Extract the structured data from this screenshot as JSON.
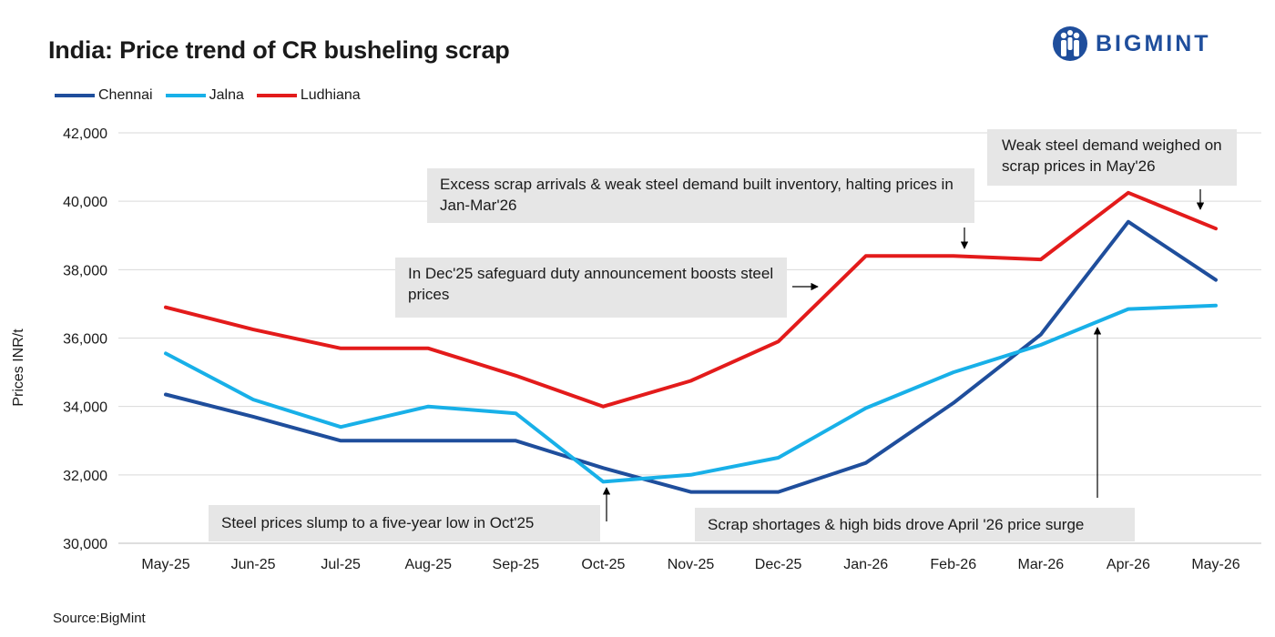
{
  "chart_data": {
    "type": "line",
    "title": "India: Price trend of CR busheling scrap",
    "ylabel": "Prices INR/t",
    "xlabel": "",
    "ylim": [
      30000,
      42000
    ],
    "yticks": [
      30000,
      32000,
      34000,
      36000,
      38000,
      40000,
      42000
    ],
    "ytick_labels": [
      "30,000",
      "32,000",
      "34,000",
      "36,000",
      "38,000",
      "40,000",
      "42,000"
    ],
    "grid": true,
    "legend_position": "top-left",
    "categories": [
      "May-25",
      "Jun-25",
      "Jul-25",
      "Aug-25",
      "Sep-25",
      "Oct-25",
      "Nov-25",
      "Dec-25",
      "Jan-26",
      "Feb-26",
      "Mar-26",
      "Apr-26",
      "May-26"
    ],
    "series": [
      {
        "name": "Chennai",
        "color": "#1f4e9c",
        "values": [
          34350,
          33700,
          33000,
          33000,
          33000,
          32200,
          31500,
          31500,
          32350,
          34100,
          36100,
          39400,
          37700
        ]
      },
      {
        "name": "Jalna",
        "color": "#18b0e8",
        "values": [
          35550,
          34200,
          33400,
          34000,
          33800,
          31800,
          32000,
          32500,
          33950,
          35000,
          35800,
          36850,
          36950
        ]
      },
      {
        "name": "Ludhiana",
        "color": "#e31b1b",
        "values": [
          36900,
          36250,
          35700,
          35700,
          34900,
          34000,
          34750,
          35900,
          38400,
          38400,
          38300,
          40250,
          39200
        ]
      }
    ],
    "annotations": [
      "Excess scrap arrivals & weak steel demand built inventory, halting prices in Jan-Mar'26",
      "Weak steel demand weighed on scrap prices in May'26",
      "In Dec'25 safeguard duty announcement boosts steel prices",
      "Steel prices slump to a five-year low in Oct'25",
      "Scrap shortages & high bids drove April '26 price surge"
    ],
    "source": "Source:BigMint"
  },
  "brand": {
    "name": "BIGMINT",
    "icon": "people-group-icon",
    "color": "#1f4e9c"
  }
}
